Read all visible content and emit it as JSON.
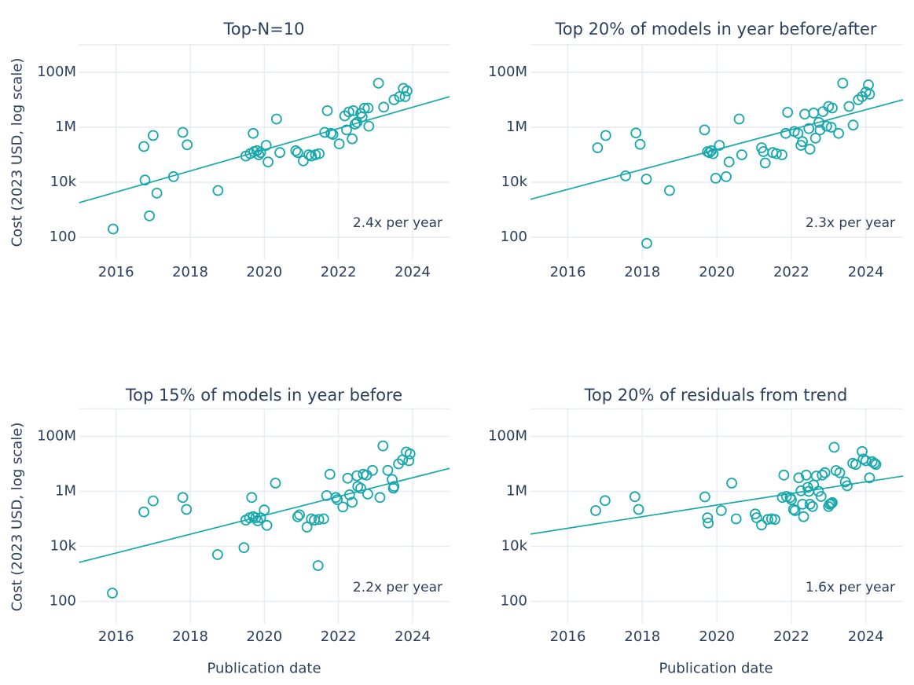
{
  "figure": {
    "y_axis_title": "Cost (2023 USD, log scale)",
    "x_axis_title": "Publication date",
    "background": "#ffffff"
  },
  "colors": {
    "series_teal": "#17a8ac",
    "trend_teal": "#17a8ac",
    "text": "#2b3f5f",
    "grid": "#e6ebf4"
  },
  "axes": {
    "y_scale": "log",
    "y_ticks": [
      {
        "label": "100M",
        "value": 100000000
      },
      {
        "label": "1M",
        "value": 1000000
      },
      {
        "label": "10k",
        "value": 10000
      },
      {
        "label": "100",
        "value": 100
      }
    ],
    "x_ticks": [
      {
        "label": "2016",
        "value": 2016
      },
      {
        "label": "2018",
        "value": 2018
      },
      {
        "label": "2020",
        "value": 2020
      },
      {
        "label": "2022",
        "value": 2022
      },
      {
        "label": "2024",
        "value": 2024
      }
    ],
    "x_range": [
      2015,
      2025
    ],
    "y_range_log10": [
      1.2,
      9
    ]
  },
  "chart_data": [
    {
      "type": "scatter",
      "title": "Top-N=10",
      "annotation": "2.4x per year",
      "growth_multiplier_per_year": 2.4,
      "xlabel": "Publication date",
      "ylabel": "Cost (2023 USD, log scale)",
      "trend": {
        "x": [
          2015,
          2025
        ],
        "y": [
          1800,
          13000000
        ]
      },
      "points": [
        [
          2015.92,
          200
        ],
        [
          2016.75,
          200000
        ],
        [
          2016.78,
          12000
        ],
        [
          2016.9,
          600
        ],
        [
          2017.0,
          500000
        ],
        [
          2017.1,
          4000
        ],
        [
          2017.55,
          16000
        ],
        [
          2017.8,
          650000
        ],
        [
          2017.92,
          230000
        ],
        [
          2018.75,
          5000
        ],
        [
          2019.5,
          90000
        ],
        [
          2019.62,
          110000
        ],
        [
          2019.7,
          600000
        ],
        [
          2019.72,
          130000
        ],
        [
          2019.8,
          140000
        ],
        [
          2019.85,
          100000
        ],
        [
          2019.9,
          120000
        ],
        [
          2020.05,
          220000
        ],
        [
          2020.1,
          55000
        ],
        [
          2020.33,
          2000000
        ],
        [
          2020.42,
          120000
        ],
        [
          2020.85,
          140000
        ],
        [
          2020.9,
          120000
        ],
        [
          2021.05,
          60000
        ],
        [
          2021.2,
          100000
        ],
        [
          2021.27,
          90000
        ],
        [
          2021.38,
          100000
        ],
        [
          2021.48,
          110000
        ],
        [
          2021.63,
          650000
        ],
        [
          2021.7,
          4000000
        ],
        [
          2021.8,
          600000
        ],
        [
          2021.85,
          550000
        ],
        [
          2022.02,
          250000
        ],
        [
          2022.17,
          2600000
        ],
        [
          2022.22,
          800000
        ],
        [
          2022.28,
          3600000
        ],
        [
          2022.37,
          380000
        ],
        [
          2022.4,
          4000000
        ],
        [
          2022.45,
          1300000
        ],
        [
          2022.5,
          1500000
        ],
        [
          2022.6,
          3200000
        ],
        [
          2022.64,
          2400000
        ],
        [
          2022.7,
          4900000
        ],
        [
          2022.8,
          5000000
        ],
        [
          2022.82,
          1100000
        ],
        [
          2023.08,
          40000000
        ],
        [
          2023.22,
          5400000
        ],
        [
          2023.5,
          10000000
        ],
        [
          2023.65,
          13000000
        ],
        [
          2023.75,
          26000000
        ],
        [
          2023.8,
          13000000
        ],
        [
          2023.85,
          21000000
        ]
      ]
    },
    {
      "type": "scatter",
      "title": "Top 20% of models in year before/after",
      "annotation": "2.3x per year",
      "growth_multiplier_per_year": 2.3,
      "xlabel": "Publication date",
      "ylabel": "Cost (2023 USD, log scale)",
      "trend": {
        "x": [
          2015,
          2025
        ],
        "y": [
          2400,
          10000000
        ]
      },
      "points": [
        [
          2016.8,
          180000
        ],
        [
          2017.02,
          500000
        ],
        [
          2017.55,
          17000
        ],
        [
          2017.83,
          620000
        ],
        [
          2017.94,
          240000
        ],
        [
          2018.11,
          13000
        ],
        [
          2018.12,
          60
        ],
        [
          2018.73,
          5000
        ],
        [
          2019.67,
          800000
        ],
        [
          2019.75,
          130000
        ],
        [
          2019.8,
          120000
        ],
        [
          2019.85,
          140000
        ],
        [
          2019.9,
          110000
        ],
        [
          2019.97,
          14000
        ],
        [
          2020.07,
          220000
        ],
        [
          2020.25,
          16000
        ],
        [
          2020.33,
          55000
        ],
        [
          2020.6,
          2000000
        ],
        [
          2020.67,
          100000
        ],
        [
          2021.2,
          180000
        ],
        [
          2021.25,
          130000
        ],
        [
          2021.3,
          50000
        ],
        [
          2021.5,
          120000
        ],
        [
          2021.6,
          110000
        ],
        [
          2021.75,
          100000
        ],
        [
          2021.85,
          600000
        ],
        [
          2021.9,
          3500000
        ],
        [
          2022.08,
          700000
        ],
        [
          2022.18,
          600000
        ],
        [
          2022.26,
          220000
        ],
        [
          2022.3,
          300000
        ],
        [
          2022.36,
          3000000
        ],
        [
          2022.47,
          900000
        ],
        [
          2022.5,
          160000
        ],
        [
          2022.6,
          3300000
        ],
        [
          2022.65,
          400000
        ],
        [
          2022.74,
          1500000
        ],
        [
          2022.77,
          800000
        ],
        [
          2022.85,
          3700000
        ],
        [
          2022.95,
          1100000
        ],
        [
          2023.0,
          5700000
        ],
        [
          2023.07,
          1000000
        ],
        [
          2023.1,
          5000000
        ],
        [
          2023.27,
          600000
        ],
        [
          2023.38,
          40000000
        ],
        [
          2023.55,
          5700000
        ],
        [
          2023.66,
          1200000
        ],
        [
          2023.8,
          10000000
        ],
        [
          2023.9,
          13000000
        ],
        [
          2024.0,
          19000000
        ],
        [
          2024.07,
          35000000
        ],
        [
          2024.1,
          16000000
        ]
      ]
    },
    {
      "type": "scatter",
      "title": "Top 15% of models in year before",
      "annotation": "2.2x per year",
      "growth_multiplier_per_year": 2.2,
      "xlabel": "Publication date",
      "ylabel": "Cost (2023 USD, log scale)",
      "trend": {
        "x": [
          2015,
          2025
        ],
        "y": [
          2600,
          6900000
        ]
      },
      "points": [
        [
          2015.9,
          200
        ],
        [
          2016.75,
          180000
        ],
        [
          2017.0,
          450000
        ],
        [
          2017.8,
          600000
        ],
        [
          2017.9,
          220000
        ],
        [
          2018.74,
          5000
        ],
        [
          2019.45,
          9000
        ],
        [
          2019.5,
          90000
        ],
        [
          2019.6,
          110000
        ],
        [
          2019.66,
          600000
        ],
        [
          2019.7,
          120000
        ],
        [
          2019.77,
          110000
        ],
        [
          2019.82,
          85000
        ],
        [
          2019.9,
          110000
        ],
        [
          2020.0,
          210000
        ],
        [
          2020.07,
          58000
        ],
        [
          2020.3,
          2000000
        ],
        [
          2020.9,
          120000
        ],
        [
          2020.95,
          140000
        ],
        [
          2021.15,
          50000
        ],
        [
          2021.27,
          100000
        ],
        [
          2021.35,
          90000
        ],
        [
          2021.45,
          2000
        ],
        [
          2021.47,
          95000
        ],
        [
          2021.6,
          100000
        ],
        [
          2021.68,
          700000
        ],
        [
          2021.77,
          4200000
        ],
        [
          2021.93,
          600000
        ],
        [
          2021.97,
          500000
        ],
        [
          2022.12,
          270000
        ],
        [
          2022.25,
          3000000
        ],
        [
          2022.3,
          750000
        ],
        [
          2022.37,
          400000
        ],
        [
          2022.5,
          3700000
        ],
        [
          2022.52,
          1500000
        ],
        [
          2022.6,
          1300000
        ],
        [
          2022.67,
          4200000
        ],
        [
          2022.76,
          3900000
        ],
        [
          2022.79,
          800000
        ],
        [
          2022.92,
          5800000
        ],
        [
          2023.12,
          600000
        ],
        [
          2023.2,
          45000000
        ],
        [
          2023.33,
          5800000
        ],
        [
          2023.45,
          2700000
        ],
        [
          2023.48,
          1300000
        ],
        [
          2023.5,
          1500000
        ],
        [
          2023.62,
          10000000
        ],
        [
          2023.73,
          14000000
        ],
        [
          2023.83,
          27000000
        ],
        [
          2023.9,
          13000000
        ],
        [
          2023.93,
          23000000
        ]
      ]
    },
    {
      "type": "scatter",
      "title": "Top 20% of residuals from trend",
      "annotation": "1.6x per year",
      "growth_multiplier_per_year": 1.6,
      "xlabel": "Publication date",
      "ylabel": "Cost (2023 USD, log scale)",
      "trend": {
        "x": [
          2015,
          2025
        ],
        "y": [
          28000,
          3600000
        ]
      },
      "points": [
        [
          2016.75,
          200000
        ],
        [
          2017.0,
          460000
        ],
        [
          2017.8,
          640000
        ],
        [
          2017.9,
          220000
        ],
        [
          2019.68,
          630000
        ],
        [
          2019.75,
          110000
        ],
        [
          2019.77,
          70000
        ],
        [
          2020.12,
          200000
        ],
        [
          2020.4,
          2000000
        ],
        [
          2020.52,
          100000
        ],
        [
          2021.03,
          150000
        ],
        [
          2021.07,
          110000
        ],
        [
          2021.2,
          60000
        ],
        [
          2021.37,
          95000
        ],
        [
          2021.47,
          100000
        ],
        [
          2021.56,
          95000
        ],
        [
          2021.76,
          600000
        ],
        [
          2021.8,
          3900000
        ],
        [
          2021.87,
          650000
        ],
        [
          2021.97,
          600000
        ],
        [
          2022.0,
          500000
        ],
        [
          2022.06,
          220000
        ],
        [
          2022.1,
          200000
        ],
        [
          2022.2,
          3100000
        ],
        [
          2022.26,
          1050000
        ],
        [
          2022.3,
          340000
        ],
        [
          2022.33,
          120000
        ],
        [
          2022.4,
          3900000
        ],
        [
          2022.44,
          1400000
        ],
        [
          2022.47,
          1000000
        ],
        [
          2022.5,
          340000
        ],
        [
          2022.57,
          280000
        ],
        [
          2022.6,
          1700000
        ],
        [
          2022.67,
          3600000
        ],
        [
          2022.73,
          1000000
        ],
        [
          2022.8,
          650000
        ],
        [
          2022.83,
          3900000
        ],
        [
          2022.9,
          4800000
        ],
        [
          2023.0,
          280000
        ],
        [
          2023.03,
          340000
        ],
        [
          2023.07,
          360000
        ],
        [
          2023.1,
          390000
        ],
        [
          2023.15,
          40000000
        ],
        [
          2023.2,
          5700000
        ],
        [
          2023.3,
          4800000
        ],
        [
          2023.45,
          2200000
        ],
        [
          2023.5,
          1600000
        ],
        [
          2023.65,
          10500000
        ],
        [
          2023.73,
          9500000
        ],
        [
          2023.9,
          28000000
        ],
        [
          2023.93,
          15000000
        ],
        [
          2024.0,
          13000000
        ],
        [
          2024.1,
          3100000
        ],
        [
          2024.17,
          12000000
        ],
        [
          2024.23,
          10500000
        ],
        [
          2024.27,
          9500000
        ]
      ]
    }
  ]
}
